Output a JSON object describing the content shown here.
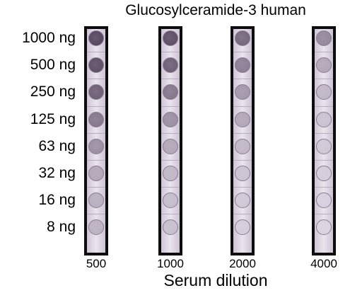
{
  "title": "Glucosylceramide-3 human",
  "xlabel": "Serum dilution",
  "amounts": [
    "1000 ng",
    "500 ng",
    "250 ng",
    "125 ng",
    "63 ng",
    "32 ng",
    "16 ng",
    "8 ng"
  ],
  "strips": [
    {
      "dilution": "500",
      "intensity": [
        0.95,
        0.9,
        0.8,
        0.65,
        0.5,
        0.35,
        0.3,
        0.28
      ]
    },
    {
      "dilution": "1000",
      "intensity": [
        0.9,
        0.8,
        0.65,
        0.5,
        0.35,
        0.25,
        0.22,
        0.2
      ]
    },
    {
      "dilution": "2000",
      "intensity": [
        0.75,
        0.6,
        0.45,
        0.35,
        0.25,
        0.18,
        0.15,
        0.12
      ]
    },
    {
      "dilution": "4000",
      "intensity": [
        0.55,
        0.35,
        0.25,
        0.18,
        0.15,
        0.12,
        0.1,
        0.08
      ]
    }
  ],
  "colors": {
    "spot": "#5b4a63",
    "strip_frame": "#0d0d0d",
    "membrane": "#e9e4ee"
  }
}
